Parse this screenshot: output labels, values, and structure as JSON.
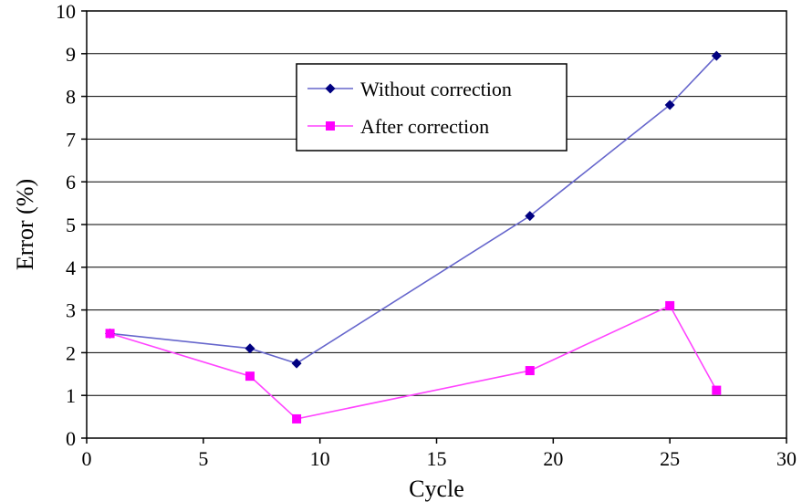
{
  "chart_data": {
    "type": "line",
    "xlabel": "Cycle",
    "ylabel": "Error (%)",
    "xlim": [
      0,
      30
    ],
    "ylim": [
      0,
      10
    ],
    "x_ticks": [
      "0",
      "5",
      "10",
      "15",
      "20",
      "25",
      "30"
    ],
    "y_ticks": [
      "0",
      "1",
      "2",
      "3",
      "4",
      "5",
      "6",
      "7",
      "8",
      "9",
      "10"
    ],
    "grid": "horizontal",
    "legend_position": "top-center",
    "series": [
      {
        "name": "Without correction",
        "color": "#6666cc",
        "marker_color": "#000080",
        "marker": "diamond",
        "x": [
          1,
          7,
          9,
          19,
          25,
          27
        ],
        "y": [
          2.45,
          2.1,
          1.75,
          5.2,
          7.8,
          8.95
        ]
      },
      {
        "name": "After correction",
        "color": "#ff44ff",
        "marker_color": "#ff00ff",
        "marker": "square",
        "x": [
          1,
          7,
          9,
          19,
          25,
          27
        ],
        "y": [
          2.45,
          1.45,
          0.45,
          1.58,
          3.1,
          1.12
        ]
      }
    ]
  }
}
